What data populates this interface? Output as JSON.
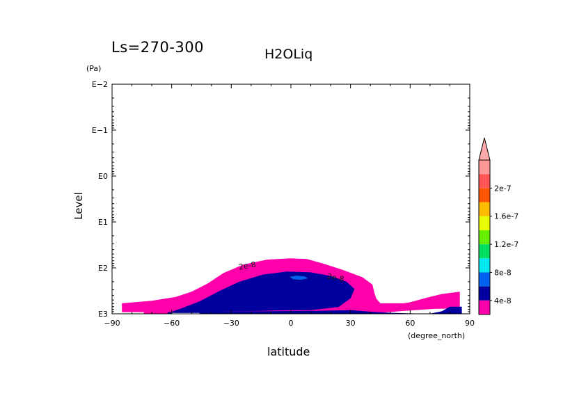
{
  "header": {
    "season": "Ls=270-300",
    "title": "H2OLiq"
  },
  "chart_data": {
    "type": "heatmap",
    "variable": "H2OLiq",
    "xlabel": "latitude",
    "xunit": "(degree_north)",
    "ylabel": "Level",
    "yunit": "(Pa)",
    "xlim": [
      -90,
      90
    ],
    "x_ticks": [
      -90,
      -60,
      -30,
      0,
      30,
      60,
      90
    ],
    "x_tick_labels": [
      "−90",
      "−60",
      "−30",
      "0",
      "30",
      "60",
      "90"
    ],
    "y_scale": "log",
    "y_ticks": [
      0.01,
      0.1,
      1,
      10,
      100,
      1000
    ],
    "y_tick_labels": [
      "E−2",
      "E−1",
      "E0",
      "E1",
      "E2",
      "E3"
    ],
    "colorbar": {
      "levels": [
        0,
        4e-08,
        8e-08,
        1.2e-07,
        1.6e-07,
        2e-07,
        2.4e-07
      ],
      "labels": [
        "4e-8",
        "8e-8",
        "1.2e-7",
        "1.6e-7",
        "2e-7"
      ],
      "colors": [
        "#ff00aa",
        "#00009f",
        "#0060f0",
        "#00e8f0",
        "#00e060",
        "#66ee00",
        "#e8ff00",
        "#ffbb00",
        "#ff5500",
        "#ff5555",
        "#ff9999"
      ],
      "extend_top_color": "#ffaaaa"
    },
    "contour_labels": [
      "2e-8",
      "2e-8"
    ],
    "regions": [
      {
        "band": "2e-8 to 4e-8",
        "color": "#ff00aa",
        "lat_range": [
          -85,
          85
        ],
        "peak_level_pa": 40
      },
      {
        "band": "4e-8 to 8e-8",
        "color": "#00009f",
        "lat_range": [
          -62,
          85
        ],
        "peak_level_pa": 70
      },
      {
        "band": "8e-8 to 1.2e-7",
        "color": "#0060f0",
        "lat_range": [
          0,
          8
        ],
        "peak_level_pa": 100
      }
    ]
  },
  "colors": {
    "background": "#ffffff",
    "axis": "#000000"
  }
}
